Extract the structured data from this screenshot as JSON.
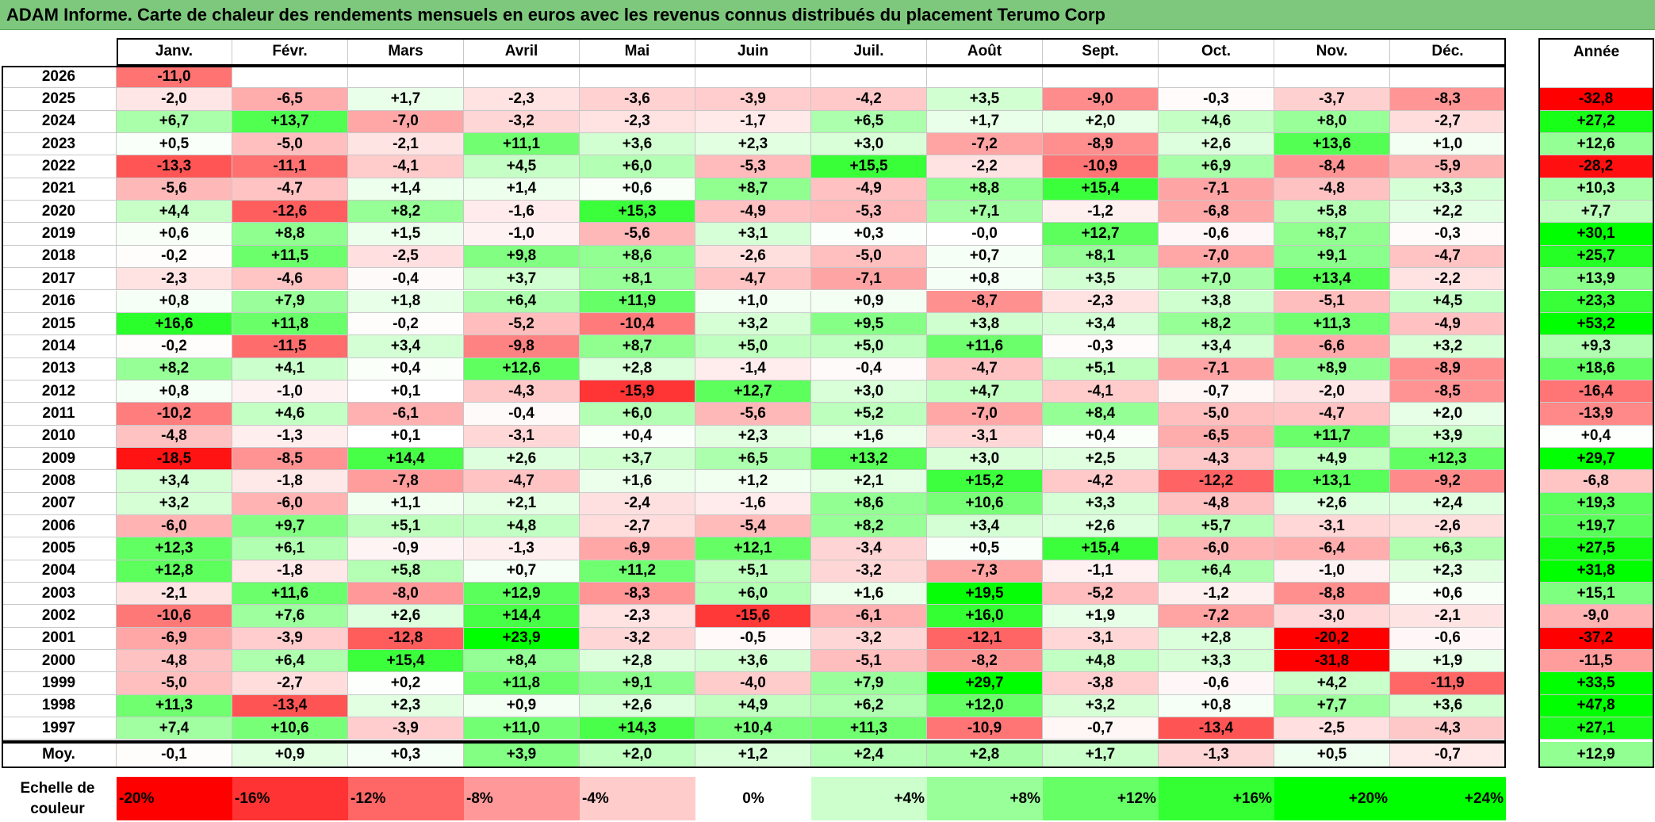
{
  "title": "ADAM Informe. Carte de chaleur des rendements mensuels en euros avec les revenus connus distribués du placement Terumo Corp",
  "chart_data": {
    "type": "heatmap",
    "months": [
      "Janv.",
      "Févr.",
      "Mars",
      "Avril",
      "Mai",
      "Juin",
      "Juil.",
      "Août",
      "Sept.",
      "Oct.",
      "Nov.",
      "Déc."
    ],
    "year_header": "Année",
    "rows": [
      {
        "year": "2026",
        "months": [
          "-11,0",
          "",
          "",
          "",
          "",
          "",
          "",
          "",
          "",
          "",
          "",
          ""
        ],
        "annual": ""
      },
      {
        "year": "2025",
        "months": [
          "-2,0",
          "-6,5",
          "+1,7",
          "-2,3",
          "-3,6",
          "-3,9",
          "-4,2",
          "+3,5",
          "-9,0",
          "-0,3",
          "-3,7",
          "-8,3"
        ],
        "annual": "-32,8"
      },
      {
        "year": "2024",
        "months": [
          "+6,7",
          "+13,7",
          "-7,0",
          "-3,2",
          "-2,3",
          "-1,7",
          "+6,5",
          "+1,7",
          "+2,0",
          "+4,6",
          "+8,0",
          "-2,7"
        ],
        "annual": "+27,2"
      },
      {
        "year": "2023",
        "months": [
          "+0,5",
          "-5,0",
          "-2,1",
          "+11,1",
          "+3,6",
          "+2,3",
          "+3,0",
          "-7,2",
          "-8,9",
          "+2,6",
          "+13,6",
          "+1,0"
        ],
        "annual": "+12,6"
      },
      {
        "year": "2022",
        "months": [
          "-13,3",
          "-11,1",
          "-4,1",
          "+4,5",
          "+6,0",
          "-5,3",
          "+15,5",
          "-2,2",
          "-10,9",
          "+6,9",
          "-8,4",
          "-5,9"
        ],
        "annual": "-28,2"
      },
      {
        "year": "2021",
        "months": [
          "-5,6",
          "-4,7",
          "+1,4",
          "+1,4",
          "+0,6",
          "+8,7",
          "-4,9",
          "+8,8",
          "+15,4",
          "-7,1",
          "-4,8",
          "+3,3"
        ],
        "annual": "+10,3"
      },
      {
        "year": "2020",
        "months": [
          "+4,4",
          "-12,6",
          "+8,2",
          "-1,6",
          "+15,3",
          "-4,9",
          "-5,3",
          "+7,1",
          "-1,2",
          "-6,8",
          "+5,8",
          "+2,2"
        ],
        "annual": "+7,7"
      },
      {
        "year": "2019",
        "months": [
          "+0,6",
          "+8,8",
          "+1,5",
          "-1,0",
          "-5,6",
          "+3,1",
          "+0,3",
          "-0,0",
          "+12,7",
          "-0,6",
          "+8,7",
          "-0,3"
        ],
        "annual": "+30,1"
      },
      {
        "year": "2018",
        "months": [
          "-0,2",
          "+11,5",
          "-2,5",
          "+9,8",
          "+8,6",
          "-2,6",
          "-5,0",
          "+0,7",
          "+8,1",
          "-7,0",
          "+9,1",
          "-4,7"
        ],
        "annual": "+25,7"
      },
      {
        "year": "2017",
        "months": [
          "-2,3",
          "-4,6",
          "-0,4",
          "+3,7",
          "+8,1",
          "-4,7",
          "-7,1",
          "+0,8",
          "+3,5",
          "+7,0",
          "+13,4",
          "-2,2"
        ],
        "annual": "+13,9"
      },
      {
        "year": "2016",
        "months": [
          "+0,8",
          "+7,9",
          "+1,8",
          "+6,4",
          "+11,9",
          "+1,0",
          "+0,9",
          "-8,7",
          "-2,3",
          "+3,8",
          "-5,1",
          "+4,5"
        ],
        "annual": "+23,3"
      },
      {
        "year": "2015",
        "months": [
          "+16,6",
          "+11,8",
          "-0,2",
          "-5,2",
          "-10,4",
          "+3,2",
          "+9,5",
          "+3,8",
          "+3,4",
          "+8,2",
          "+11,3",
          "-4,9"
        ],
        "annual": "+53,2"
      },
      {
        "year": "2014",
        "months": [
          "-0,2",
          "-11,5",
          "+3,4",
          "-9,8",
          "+8,7",
          "+5,0",
          "+5,0",
          "+11,6",
          "-0,3",
          "+3,4",
          "-6,6",
          "+3,2"
        ],
        "annual": "+9,3"
      },
      {
        "year": "2013",
        "months": [
          "+8,2",
          "+4,1",
          "+0,4",
          "+12,6",
          "+2,8",
          "-1,4",
          "-0,4",
          "-4,7",
          "+5,1",
          "-7,1",
          "+8,9",
          "-8,9"
        ],
        "annual": "+18,6"
      },
      {
        "year": "2012",
        "months": [
          "+0,8",
          "-1,0",
          "+0,1",
          "-4,3",
          "-15,9",
          "+12,7",
          "+3,0",
          "+4,7",
          "-4,1",
          "-0,7",
          "-2,0",
          "-8,5"
        ],
        "annual": "-16,4"
      },
      {
        "year": "2011",
        "months": [
          "-10,2",
          "+4,6",
          "-6,1",
          "-0,4",
          "+6,0",
          "-5,6",
          "+5,2",
          "-7,0",
          "+8,4",
          "-5,0",
          "-4,7",
          "+2,0"
        ],
        "annual": "-13,9"
      },
      {
        "year": "2010",
        "months": [
          "-4,8",
          "-1,3",
          "+0,1",
          "-3,1",
          "+0,4",
          "+2,3",
          "+1,6",
          "-3,1",
          "+0,4",
          "-6,5",
          "+11,7",
          "+3,9"
        ],
        "annual": "+0,4"
      },
      {
        "year": "2009",
        "months": [
          "-18,5",
          "-8,5",
          "+14,4",
          "+2,6",
          "+3,7",
          "+6,5",
          "+13,2",
          "+3,0",
          "+2,5",
          "-4,3",
          "+4,9",
          "+12,3"
        ],
        "annual": "+29,7"
      },
      {
        "year": "2008",
        "months": [
          "+3,4",
          "-1,8",
          "-7,8",
          "-4,7",
          "+1,6",
          "+1,2",
          "+2,1",
          "+15,2",
          "-4,2",
          "-12,2",
          "+13,1",
          "-9,2"
        ],
        "annual": "-6,8"
      },
      {
        "year": "2007",
        "months": [
          "+3,2",
          "-6,0",
          "+1,1",
          "+2,1",
          "-2,4",
          "-1,6",
          "+8,6",
          "+10,6",
          "+3,3",
          "-4,8",
          "+2,6",
          "+2,4"
        ],
        "annual": "+19,3"
      },
      {
        "year": "2006",
        "months": [
          "-6,0",
          "+9,7",
          "+5,1",
          "+4,8",
          "-2,7",
          "-5,4",
          "+8,2",
          "+3,4",
          "+2,6",
          "+5,7",
          "-3,1",
          "-2,6"
        ],
        "annual": "+19,7"
      },
      {
        "year": "2005",
        "months": [
          "+12,3",
          "+6,1",
          "-0,9",
          "-1,3",
          "-6,9",
          "+12,1",
          "-3,4",
          "+0,5",
          "+15,4",
          "-6,0",
          "-6,4",
          "+6,3"
        ],
        "annual": "+27,5"
      },
      {
        "year": "2004",
        "months": [
          "+12,8",
          "-1,8",
          "+5,8",
          "+0,7",
          "+11,2",
          "+5,1",
          "-3,2",
          "-7,3",
          "-1,1",
          "+6,4",
          "-1,0",
          "+2,3"
        ],
        "annual": "+31,8"
      },
      {
        "year": "2003",
        "months": [
          "-2,1",
          "+11,6",
          "-8,0",
          "+12,9",
          "-8,3",
          "+6,0",
          "+1,6",
          "+19,5",
          "-5,2",
          "-1,2",
          "-8,8",
          "+0,6"
        ],
        "annual": "+15,1"
      },
      {
        "year": "2002",
        "months": [
          "-10,6",
          "+7,6",
          "+2,6",
          "+14,4",
          "-2,3",
          "-15,6",
          "-6,1",
          "+16,0",
          "+1,9",
          "-7,2",
          "-3,0",
          "-2,1"
        ],
        "annual": "-9,0"
      },
      {
        "year": "2001",
        "months": [
          "-6,9",
          "-3,9",
          "-12,8",
          "+23,9",
          "-3,2",
          "-0,5",
          "-3,2",
          "-12,1",
          "-3,1",
          "+2,8",
          "-20,2",
          "-0,6"
        ],
        "annual": "-37,2"
      },
      {
        "year": "2000",
        "months": [
          "-4,8",
          "+6,4",
          "+15,4",
          "+8,4",
          "+2,8",
          "+3,6",
          "-5,1",
          "-8,2",
          "+4,8",
          "+3,3",
          "-31,8",
          "+1,9"
        ],
        "annual": "-11,5"
      },
      {
        "year": "1999",
        "months": [
          "-5,0",
          "-2,7",
          "+0,2",
          "+11,8",
          "+9,1",
          "-4,0",
          "+7,9",
          "+29,7",
          "-3,8",
          "-0,6",
          "+4,2",
          "-11,9"
        ],
        "annual": "+33,5"
      },
      {
        "year": "1998",
        "months": [
          "+11,3",
          "-13,4",
          "+2,3",
          "+0,9",
          "+2,6",
          "+4,9",
          "+6,2",
          "+12,0",
          "+3,2",
          "+0,8",
          "+7,7",
          "+3,6"
        ],
        "annual": "+47,8"
      },
      {
        "year": "1997",
        "months": [
          "+7,4",
          "+10,6",
          "-3,9",
          "+11,0",
          "+14,3",
          "+10,4",
          "+11,3",
          "-10,9",
          "-0,7",
          "-13,4",
          "-2,5",
          "-4,3"
        ],
        "annual": "+27,1"
      }
    ],
    "average": {
      "label": "Moy.",
      "months": [
        "-0,1",
        "+0,9",
        "+0,3",
        "+3,9",
        "+2,0",
        "+1,2",
        "+2,4",
        "+2,8",
        "+1,7",
        "-1,3",
        "+0,5",
        "-0,7"
      ],
      "annual": "+12,9"
    },
    "scale": {
      "label_line1": "Echelle de",
      "label_line2": "couleur",
      "stops": [
        "-20%",
        "-16%",
        "-12%",
        "-8%",
        "-4%",
        "0%",
        "+4%",
        "+8%",
        "+12%",
        "+16%",
        "+20%",
        "+24%"
      ],
      "stop_values": [
        -20,
        -16,
        -12,
        -8,
        -4,
        0,
        4,
        8,
        12,
        16,
        20,
        24
      ]
    },
    "colors": {
      "negative": "#ff0000",
      "neutral": "#ffffff",
      "positive": "#00ff00",
      "title_bg": "#7dc87d"
    }
  }
}
